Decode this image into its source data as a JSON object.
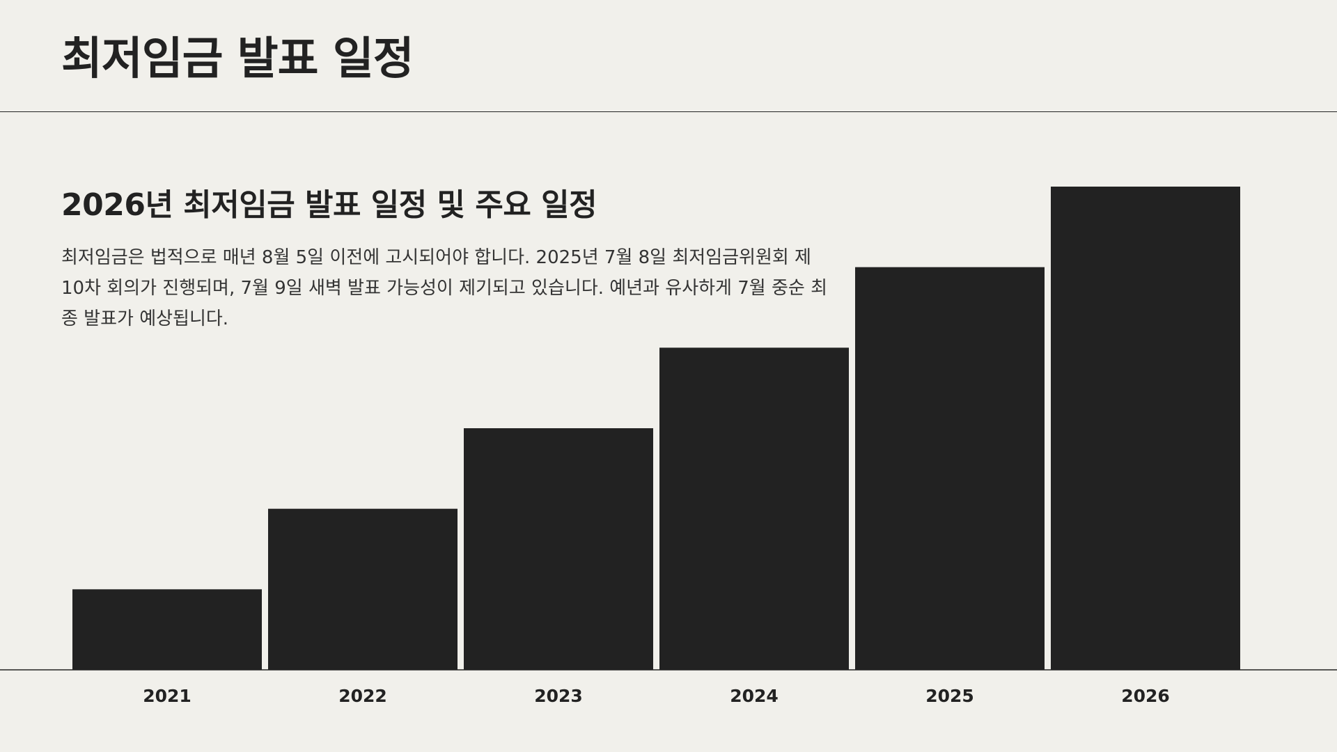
{
  "page": {
    "title": "최저임금 발표 일정"
  },
  "section": {
    "heading": "2026년 최저임금 발표 일정 및 주요 일정",
    "description": "최저임금은 법적으로 매년 8월 5일 이전에 고시되어야 합니다. 2025년 7월 8일 최저임금위원회 제10차 회의가 진행되며, 7월 9일 새벽 발표 가능성이 제기되고 있습니다. 예년과 유사하게 7월 중순 최종 발표가 예상됩니다."
  },
  "colors": {
    "bar": "#222222",
    "background": "#f1f0eb",
    "axis": "#222222"
  },
  "chart_data": {
    "type": "bar",
    "title": "",
    "xlabel": "",
    "ylabel": "",
    "categories": [
      "2021",
      "2022",
      "2023",
      "2024",
      "2025",
      "2026"
    ],
    "values": [
      1,
      2,
      3,
      4,
      5,
      6
    ],
    "ylim": [
      0,
      6
    ],
    "grid": false,
    "legend": "none"
  }
}
